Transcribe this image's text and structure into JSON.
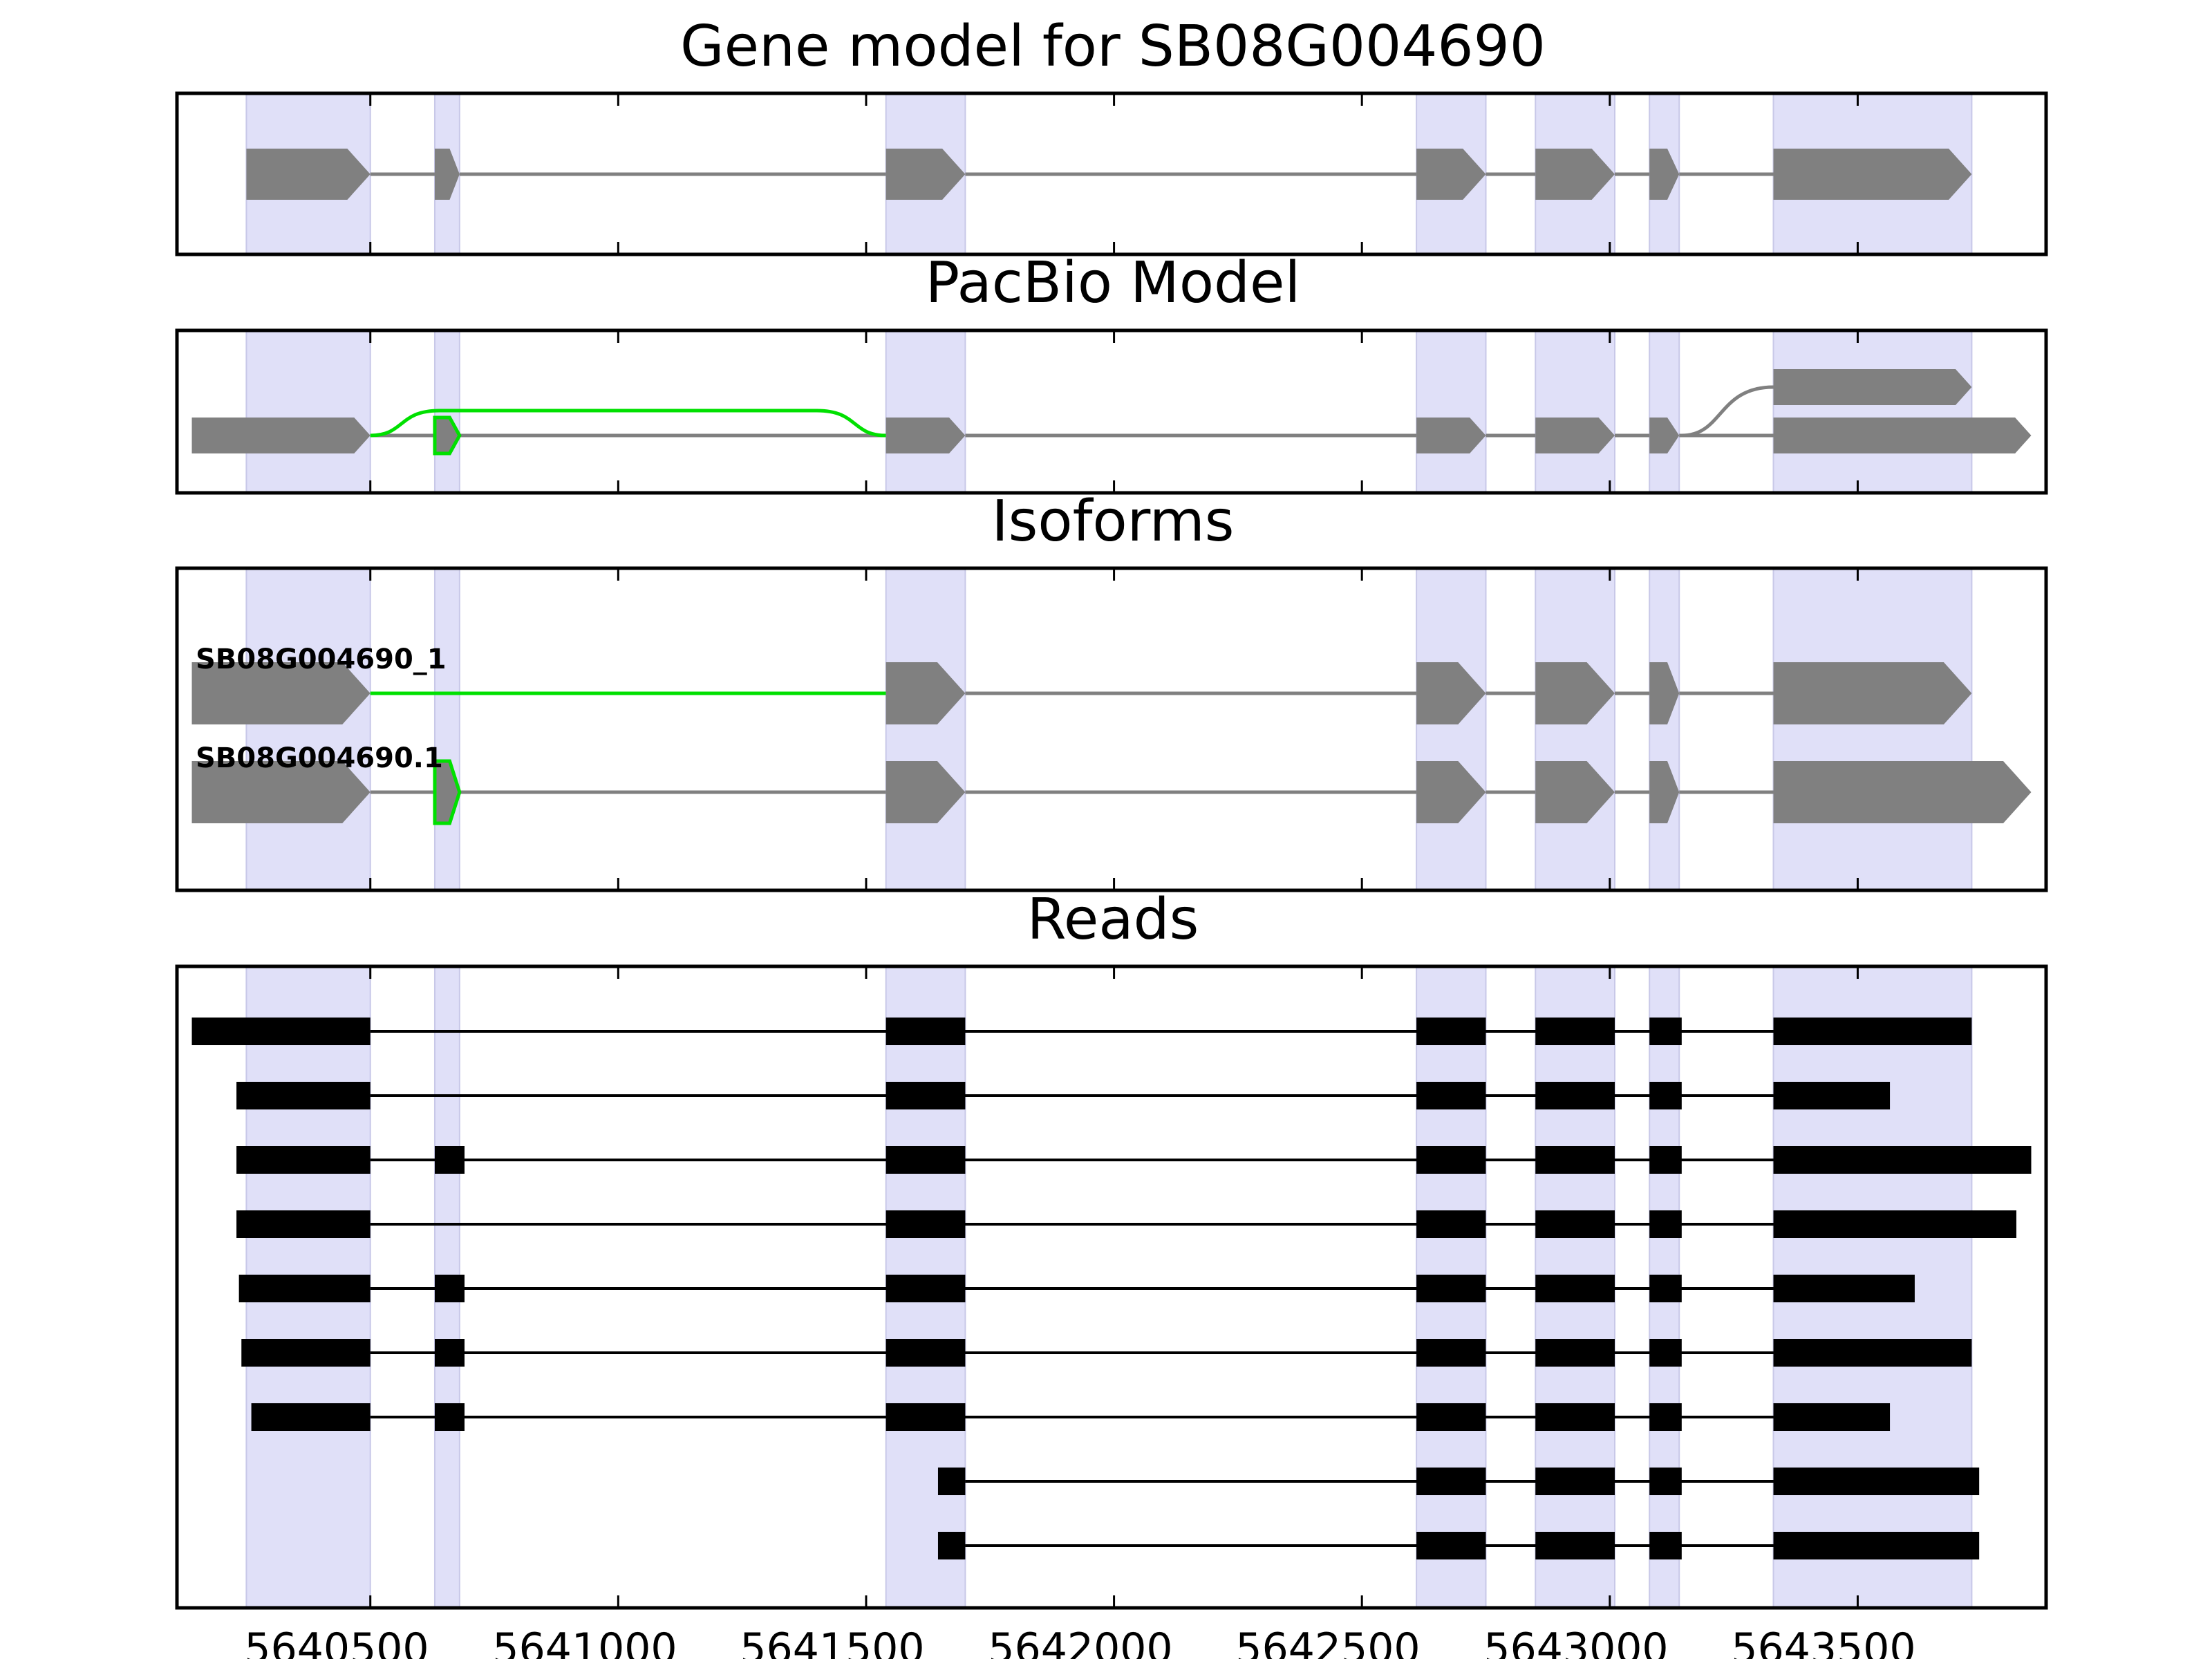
{
  "chart_data": [
    {
      "type": "gene-model",
      "title": "Gene model for SB08G004690",
      "highlight_color": "#e0e0f8",
      "exon_color": "#808080",
      "intron_color": "#808080",
      "exons": [
        [
          5640250,
          5640500
        ],
        [
          5640630,
          5640680
        ],
        [
          5641540,
          5641700
        ],
        [
          5642610,
          5642750
        ],
        [
          5642850,
          5643010
        ],
        [
          5643080,
          5643140
        ],
        [
          5643330,
          5643730
        ]
      ]
    },
    {
      "type": "gene-model",
      "title": "PacBio Model",
      "exon_color": "#808080",
      "alt_color": "#00e000",
      "tracks": [
        {
          "level": "main",
          "exons": [
            [
              5640140,
              5640500
            ],
            [
              5641540,
              5641700
            ],
            [
              5642610,
              5642750
            ],
            [
              5642850,
              5643010
            ],
            [
              5643080,
              5643140
            ],
            [
              5643330,
              5643850
            ]
          ]
        },
        {
          "level": "upper",
          "exons": [
            [
              5643330,
              5643730
            ]
          ]
        }
      ],
      "alt_exon": [
        5640630,
        5640680
      ],
      "alt_junction": {
        "from": 5640500,
        "to": 5641540
      }
    },
    {
      "type": "isoforms",
      "title": "Isoforms",
      "exon_color": "#808080",
      "alt_color": "#00e000",
      "isoforms": [
        {
          "name": "SB08G004690_1",
          "exons": [
            [
              5640140,
              5640500
            ],
            [
              5641540,
              5641700
            ],
            [
              5642610,
              5642750
            ],
            [
              5642850,
              5643010
            ],
            [
              5643080,
              5643140
            ],
            [
              5643330,
              5643730
            ]
          ],
          "alt_intron": [
            5640500,
            5641540
          ]
        },
        {
          "name": "SB08G004690.1",
          "exons": [
            [
              5640140,
              5640500
            ],
            [
              5640630,
              5640680
            ],
            [
              5641540,
              5641700
            ],
            [
              5642610,
              5642750
            ],
            [
              5642850,
              5643010
            ],
            [
              5643080,
              5643140
            ],
            [
              5643330,
              5643850
            ]
          ],
          "alt_exon": [
            5640630,
            5640680
          ]
        }
      ]
    },
    {
      "type": "reads",
      "title": "Reads",
      "read_color": "#000000",
      "xlabel_ticks": [
        "5640500",
        "5641000",
        "5641500",
        "5642000",
        "5642500",
        "5643000",
        "5643500"
      ],
      "xticks": [
        5640500,
        5641000,
        5641500,
        5642000,
        5642500,
        5643000,
        5643500
      ],
      "xlim": [
        5640110,
        5643880
      ],
      "reads": [
        [
          [
            5640140,
            5640500
          ],
          [
            5641540,
            5641700
          ],
          [
            5642610,
            5642750
          ],
          [
            5642850,
            5643010
          ],
          [
            5643080,
            5643145
          ],
          [
            5643330,
            5643730
          ]
        ],
        [
          [
            5640230,
            5640500
          ],
          [
            5641540,
            5641700
          ],
          [
            5642610,
            5642750
          ],
          [
            5642850,
            5643010
          ],
          [
            5643080,
            5643145
          ],
          [
            5643330,
            5643565
          ]
        ],
        [
          [
            5640230,
            5640500
          ],
          [
            5640630,
            5640690
          ],
          [
            5641540,
            5641700
          ],
          [
            5642610,
            5642750
          ],
          [
            5642850,
            5643010
          ],
          [
            5643080,
            5643145
          ],
          [
            5643330,
            5643850
          ]
        ],
        [
          [
            5640230,
            5640500
          ],
          [
            5641540,
            5641700
          ],
          [
            5642610,
            5642750
          ],
          [
            5642850,
            5643010
          ],
          [
            5643080,
            5643145
          ],
          [
            5643330,
            5643820
          ]
        ],
        [
          [
            5640235,
            5640500
          ],
          [
            5640630,
            5640690
          ],
          [
            5641540,
            5641700
          ],
          [
            5642610,
            5642750
          ],
          [
            5642850,
            5643010
          ],
          [
            5643080,
            5643145
          ],
          [
            5643330,
            5643615
          ]
        ],
        [
          [
            5640240,
            5640500
          ],
          [
            5640630,
            5640690
          ],
          [
            5641540,
            5641700
          ],
          [
            5642610,
            5642750
          ],
          [
            5642850,
            5643010
          ],
          [
            5643080,
            5643145
          ],
          [
            5643330,
            5643730
          ]
        ],
        [
          [
            5640260,
            5640500
          ],
          [
            5640630,
            5640690
          ],
          [
            5641540,
            5641700
          ],
          [
            5642610,
            5642750
          ],
          [
            5642850,
            5643010
          ],
          [
            5643080,
            5643145
          ],
          [
            5643330,
            5643565
          ]
        ],
        [
          [
            5641645,
            5641700
          ],
          [
            5642610,
            5642750
          ],
          [
            5642850,
            5643010
          ],
          [
            5643080,
            5643145
          ],
          [
            5643330,
            5643745
          ]
        ],
        [
          [
            5641645,
            5641700
          ],
          [
            5642610,
            5642750
          ],
          [
            5642850,
            5643010
          ],
          [
            5643080,
            5643145
          ],
          [
            5643330,
            5643745
          ]
        ]
      ]
    }
  ]
}
